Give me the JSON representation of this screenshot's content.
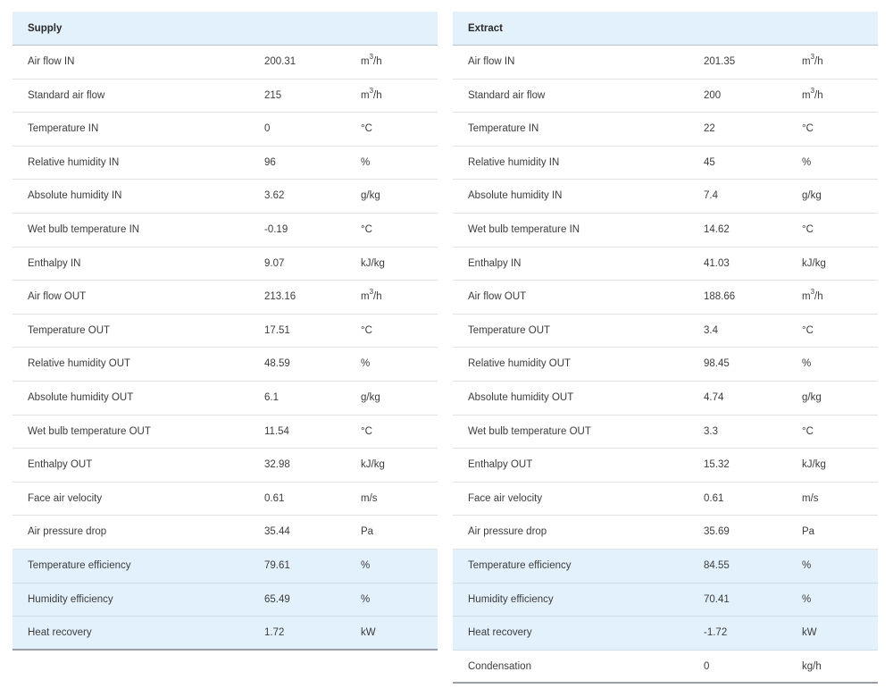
{
  "supply": {
    "title": "Supply",
    "rows": [
      {
        "label": "Air flow IN",
        "value": "200.31",
        "unit": "m3/h"
      },
      {
        "label": "Standard air flow",
        "value": "215",
        "unit": "m3/h"
      },
      {
        "label": "Temperature IN",
        "value": "0",
        "unit": "°C"
      },
      {
        "label": "Relative humidity IN",
        "value": "96",
        "unit": "%"
      },
      {
        "label": "Absolute humidity IN",
        "value": "3.62",
        "unit": "g/kg"
      },
      {
        "label": "Wet bulb temperature IN",
        "value": "-0.19",
        "unit": "°C"
      },
      {
        "label": "Enthalpy IN",
        "value": "9.07",
        "unit": "kJ/kg"
      },
      {
        "label": "Air flow OUT",
        "value": "213.16",
        "unit": "m3/h"
      },
      {
        "label": "Temperature OUT",
        "value": "17.51",
        "unit": "°C"
      },
      {
        "label": "Relative humidity OUT",
        "value": "48.59",
        "unit": "%"
      },
      {
        "label": "Absolute humidity OUT",
        "value": "6.1",
        "unit": "g/kg"
      },
      {
        "label": "Wet bulb temperature OUT",
        "value": "11.54",
        "unit": "°C"
      },
      {
        "label": "Enthalpy OUT",
        "value": "32.98",
        "unit": "kJ/kg"
      },
      {
        "label": "Face air velocity",
        "value": "0.61",
        "unit": "m/s"
      },
      {
        "label": "Air pressure drop",
        "value": "35.44",
        "unit": "Pa"
      },
      {
        "label": "Temperature efficiency",
        "value": "79.61",
        "unit": "%"
      },
      {
        "label": "Humidity efficiency",
        "value": "65.49",
        "unit": "%"
      },
      {
        "label": "Heat recovery",
        "value": "1.72",
        "unit": "kW"
      }
    ]
  },
  "extract": {
    "title": "Extract",
    "rows": [
      {
        "label": "Air flow IN",
        "value": "201.35",
        "unit": "m3/h"
      },
      {
        "label": "Standard air flow",
        "value": "200",
        "unit": "m3/h"
      },
      {
        "label": "Temperature IN",
        "value": "22",
        "unit": "°C"
      },
      {
        "label": "Relative humidity IN",
        "value": "45",
        "unit": "%"
      },
      {
        "label": "Absolute humidity IN",
        "value": "7.4",
        "unit": "g/kg"
      },
      {
        "label": "Wet bulb temperature IN",
        "value": "14.62",
        "unit": "°C"
      },
      {
        "label": "Enthalpy IN",
        "value": "41.03",
        "unit": "kJ/kg"
      },
      {
        "label": "Air flow OUT",
        "value": "188.66",
        "unit": "m3/h"
      },
      {
        "label": "Temperature OUT",
        "value": "3.4",
        "unit": "°C"
      },
      {
        "label": "Relative humidity OUT",
        "value": "98.45",
        "unit": "%"
      },
      {
        "label": "Absolute humidity OUT",
        "value": "4.74",
        "unit": "g/kg"
      },
      {
        "label": "Wet bulb temperature OUT",
        "value": "3.3",
        "unit": "°C"
      },
      {
        "label": "Enthalpy OUT",
        "value": "15.32",
        "unit": "kJ/kg"
      },
      {
        "label": "Face air velocity",
        "value": "0.61",
        "unit": "m/s"
      },
      {
        "label": "Air pressure drop",
        "value": "35.69",
        "unit": "Pa"
      },
      {
        "label": "Temperature efficiency",
        "value": "84.55",
        "unit": "%"
      },
      {
        "label": "Humidity efficiency",
        "value": "70.41",
        "unit": "%"
      },
      {
        "label": "Heat recovery",
        "value": "-1.72",
        "unit": "kW"
      },
      {
        "label": "Condensation",
        "value": "0",
        "unit": "kg/h"
      }
    ]
  },
  "colors": {
    "header_bg": "#e3f1fc",
    "highlight_bg": "#e3f1fc",
    "row_divider": "#e2e2e2"
  }
}
